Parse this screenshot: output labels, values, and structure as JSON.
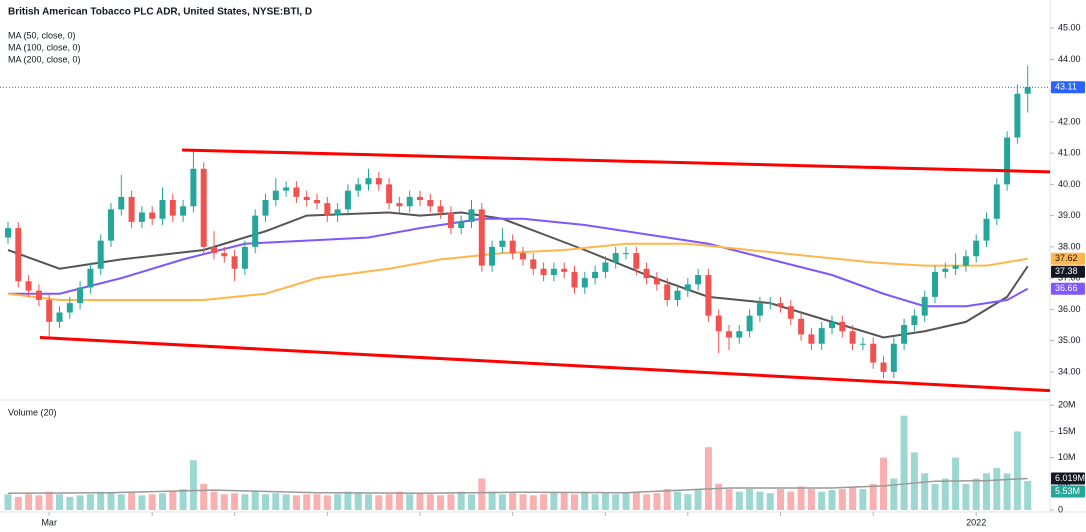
{
  "chart_data": {
    "type": "candlestick",
    "title": "British American Tobacco PLC ADR, United States, NYSE:BTI, D",
    "categories": [
      null,
      null,
      null,
      null,
      "Mar",
      null,
      null,
      null,
      null,
      null,
      null,
      null,
      null,
      null,
      null,
      null,
      null,
      null,
      null,
      null,
      null,
      null,
      null,
      null,
      null,
      null,
      null,
      null,
      null,
      null,
      null,
      null,
      null,
      null,
      null,
      null,
      null,
      null,
      null,
      null,
      null,
      null,
      null,
      null,
      null,
      null,
      null,
      null,
      null,
      null,
      null,
      null,
      null,
      null,
      null,
      null,
      null,
      null,
      null,
      null,
      null,
      null,
      null,
      null,
      null,
      null,
      null,
      null,
      null,
      null,
      null,
      null,
      null,
      null,
      null,
      null,
      null,
      null,
      null,
      null,
      null,
      null,
      null,
      null,
      null,
      null,
      null,
      null,
      null,
      null,
      null,
      null,
      null,
      null,
      "2022",
      null,
      null,
      null,
      null,
      null
    ],
    "month_ticks": [
      4,
      14,
      22,
      31,
      40,
      49,
      58,
      66,
      75,
      84,
      94
    ],
    "open": [
      38.3,
      38.6,
      36.9,
      36.6,
      36.3,
      35.6,
      35.9,
      36.2,
      36.7,
      37.3,
      38.2,
      39.2,
      39.6,
      38.8,
      39.1,
      38.9,
      39.5,
      39.0,
      39.3,
      40.5,
      38.0,
      37.8,
      37.7,
      37.3,
      38.0,
      39.0,
      39.5,
      39.8,
      39.9,
      39.6,
      39.5,
      39.4,
      39.0,
      39.2,
      39.8,
      40.0,
      40.2,
      40.0,
      39.4,
      39.3,
      39.6,
      39.5,
      39.3,
      39.1,
      38.6,
      38.8,
      39.2,
      37.4,
      38.0,
      38.2,
      37.8,
      37.6,
      37.3,
      37.1,
      37.3,
      37.2,
      36.7,
      37.0,
      37.2,
      37.5,
      37.8,
      37.8,
      37.3,
      37.0,
      36.8,
      36.3,
      36.6,
      36.8,
      37.1,
      35.8,
      35.3,
      35.1,
      35.3,
      35.8,
      36.2,
      36.2,
      36.1,
      35.7,
      35.2,
      34.9,
      35.4,
      35.6,
      35.3,
      34.9,
      34.9,
      34.3,
      34.0,
      34.9,
      35.5,
      35.8,
      36.4,
      37.2,
      37.3,
      37.4,
      37.7,
      38.2,
      38.9,
      40.0,
      41.5,
      42.9
    ],
    "high": [
      38.8,
      38.8,
      37.1,
      36.8,
      36.5,
      36.1,
      36.4,
      36.9,
      37.5,
      38.4,
      39.4,
      40.3,
      39.8,
      39.3,
      39.3,
      39.9,
      39.7,
      39.5,
      41.1,
      40.7,
      38.5,
      38.0,
      37.9,
      38.2,
      39.2,
      39.7,
      40.2,
      40.1,
      40.1,
      39.8,
      39.7,
      39.6,
      39.4,
      40.0,
      40.2,
      40.5,
      40.4,
      40.2,
      39.6,
      39.8,
      39.8,
      39.7,
      39.5,
      39.3,
      39.0,
      39.5,
      39.4,
      38.2,
      38.6,
      38.4,
      38.0,
      37.8,
      37.5,
      37.5,
      37.5,
      37.4,
      37.2,
      37.4,
      37.7,
      38.0,
      38.0,
      38.0,
      37.5,
      37.2,
      37.0,
      36.8,
      37.0,
      37.3,
      37.3,
      36.0,
      35.5,
      35.5,
      36.0,
      36.4,
      36.4,
      36.4,
      36.3,
      35.9,
      35.4,
      35.6,
      35.8,
      35.8,
      35.5,
      35.1,
      35.1,
      34.5,
      35.1,
      35.7,
      36.0,
      36.6,
      37.4,
      37.5,
      37.8,
      37.9,
      38.4,
      39.1,
      40.2,
      41.7,
      43.2,
      43.8
    ],
    "low": [
      38.1,
      36.7,
      36.4,
      36.1,
      35.1,
      35.4,
      35.7,
      36.0,
      36.5,
      37.1,
      38.0,
      39.0,
      38.6,
      38.6,
      38.7,
      38.7,
      38.8,
      38.8,
      39.1,
      37.8,
      37.6,
      37.5,
      36.9,
      37.1,
      37.8,
      38.8,
      39.3,
      39.6,
      39.4,
      39.3,
      39.2,
      38.8,
      38.8,
      39.0,
      39.6,
      39.8,
      39.8,
      39.2,
      39.1,
      39.1,
      39.3,
      39.1,
      38.9,
      38.4,
      38.4,
      38.6,
      37.2,
      37.2,
      37.8,
      37.6,
      37.4,
      37.1,
      36.9,
      36.9,
      37.0,
      36.5,
      36.5,
      36.8,
      37.0,
      37.3,
      37.6,
      37.1,
      36.8,
      36.6,
      36.1,
      36.1,
      36.4,
      36.6,
      35.6,
      34.6,
      34.7,
      34.9,
      35.1,
      35.6,
      36.0,
      35.9,
      35.5,
      35.0,
      34.7,
      34.7,
      35.2,
      35.1,
      34.7,
      34.7,
      34.1,
      33.8,
      33.8,
      34.7,
      35.3,
      35.6,
      36.2,
      37.0,
      37.1,
      37.2,
      37.5,
      38.0,
      38.7,
      39.8,
      41.3,
      42.3
    ],
    "close": [
      38.6,
      36.9,
      36.6,
      36.3,
      35.6,
      35.9,
      36.2,
      36.7,
      37.3,
      38.2,
      39.2,
      39.6,
      38.8,
      39.1,
      38.9,
      39.5,
      39.0,
      39.3,
      40.5,
      38.0,
      37.8,
      37.7,
      37.3,
      38.0,
      39.0,
      39.5,
      39.8,
      39.9,
      39.6,
      39.5,
      39.4,
      39.0,
      39.2,
      39.8,
      40.0,
      40.2,
      40.0,
      39.4,
      39.3,
      39.6,
      39.5,
      39.3,
      39.1,
      38.6,
      38.8,
      39.2,
      37.4,
      38.0,
      38.2,
      37.8,
      37.6,
      37.3,
      37.1,
      37.3,
      37.2,
      36.7,
      37.0,
      37.2,
      37.5,
      37.8,
      37.8,
      37.3,
      37.0,
      36.8,
      36.3,
      36.6,
      36.8,
      37.1,
      35.8,
      35.3,
      35.1,
      35.3,
      35.8,
      36.2,
      36.2,
      36.1,
      35.7,
      35.2,
      34.9,
      35.4,
      35.6,
      35.3,
      34.9,
      34.9,
      34.3,
      34.0,
      34.9,
      35.5,
      35.8,
      36.4,
      37.2,
      37.3,
      37.4,
      37.7,
      38.2,
      38.9,
      40.0,
      41.5,
      42.9,
      43.11
    ],
    "up_color": "#26a69a",
    "down_color": "#ef5350",
    "last_price_color": "#2962ff",
    "ylim": [
      33.1,
      45.9
    ],
    "yticks": [
      {
        "value": 34,
        "label": "34.00"
      },
      {
        "value": 35,
        "label": "35.00"
      },
      {
        "value": 36,
        "label": "36.00"
      },
      {
        "value": 37,
        "label": "37.00"
      },
      {
        "value": 38,
        "label": "38.00"
      },
      {
        "value": 39,
        "label": "39.00"
      },
      {
        "value": 40,
        "label": "40.00"
      },
      {
        "value": 41,
        "label": "41.00"
      },
      {
        "value": 42,
        "label": "42.00"
      },
      {
        "value": 43,
        "label": "43.00"
      },
      {
        "value": 44,
        "label": "44.00"
      },
      {
        "value": 45,
        "label": "45.00"
      }
    ],
    "series": [
      {
        "name": "MA (50, close, 0)",
        "color": "#555555",
        "x": [
          0,
          5,
          11,
          19,
          25,
          29,
          37,
          40,
          44,
          48,
          52,
          56,
          62,
          68,
          74,
          80,
          85,
          89,
          93,
          97,
          99
        ],
        "values": [
          37.9,
          37.3,
          37.6,
          37.9,
          38.5,
          39.0,
          39.1,
          39.0,
          39.1,
          38.9,
          38.4,
          37.9,
          37.1,
          36.4,
          36.2,
          35.6,
          35.1,
          35.3,
          35.6,
          36.4,
          37.38
        ]
      },
      {
        "name": "MA (100, close, 0)",
        "color": "#7e57ff",
        "x": [
          0,
          5,
          11,
          17,
          23,
          29,
          35,
          40,
          46,
          50,
          56,
          62,
          68,
          74,
          80,
          85,
          89,
          93,
          97,
          99
        ],
        "values": [
          36.5,
          36.5,
          37.0,
          37.6,
          38.1,
          38.2,
          38.3,
          38.6,
          38.9,
          38.9,
          38.7,
          38.4,
          38.1,
          37.6,
          37.1,
          36.5,
          36.1,
          36.1,
          36.3,
          36.66
        ]
      },
      {
        "name": "MA (200, close, 0)",
        "color": "#ffb74d",
        "x": [
          0,
          5,
          11,
          19,
          25,
          30,
          37,
          42,
          48,
          54,
          60,
          66,
          72,
          78,
          84,
          89,
          95,
          99
        ],
        "values": [
          36.5,
          36.3,
          36.3,
          36.3,
          36.5,
          37.0,
          37.3,
          37.6,
          37.8,
          37.9,
          38.1,
          38.1,
          37.9,
          37.7,
          37.5,
          37.4,
          37.4,
          37.62
        ]
      }
    ],
    "trendlines": [
      {
        "color": "#ff0000",
        "x": [
          16.9,
          101.2
        ],
        "y": [
          41.1,
          40.4
        ]
      },
      {
        "color": "#ff0000",
        "x": [
          3.1,
          101.2
        ],
        "y": [
          35.1,
          33.4
        ]
      }
    ],
    "volume": {
      "name": "Volume (20)",
      "values": [
        3,
        2.5,
        3,
        2.8,
        3.5,
        3,
        2.5,
        2.8,
        3,
        3.5,
        3.2,
        3,
        3.5,
        2.8,
        3,
        3.2,
        3.5,
        4,
        9.5,
        5,
        3.5,
        3,
        3.2,
        3,
        3.5,
        3,
        3.2,
        3,
        2.8,
        3,
        3,
        2.8,
        3,
        3.5,
        3.2,
        3,
        2.8,
        3,
        3.5,
        3,
        3.2,
        3,
        2.8,
        3,
        3.5,
        3,
        6,
        3.5,
        3,
        3.2,
        3,
        2.8,
        3,
        3.5,
        3.2,
        3,
        3.5,
        3,
        3.2,
        3,
        3.2,
        3.5,
        3,
        3.2,
        4,
        3.5,
        3,
        4,
        12,
        5,
        4,
        3.5,
        4,
        3.5,
        3.2,
        4,
        3.5,
        4.5,
        4,
        3.5,
        3.8,
        4,
        4.5,
        4,
        5,
        10,
        6,
        18,
        11,
        7,
        5,
        6,
        10,
        5,
        6,
        7,
        8,
        7,
        15,
        5.53
      ],
      "last_label": "5.53M",
      "ylim": [
        0,
        21
      ],
      "yticks": [
        0,
        {
          "value": 5,
          "label": "5M"
        },
        {
          "value": 10,
          "label": "10M"
        },
        {
          "value": 15,
          "label": "15M"
        },
        {
          "value": 20,
          "label": "20M"
        }
      ],
      "ma": {
        "color": "#999999",
        "x": [
          0,
          10,
          20,
          30,
          40,
          50,
          60,
          70,
          80,
          85,
          90,
          95,
          99
        ],
        "values": [
          3.2,
          3.3,
          3.8,
          3.3,
          3.2,
          3.4,
          3.3,
          4.2,
          4.2,
          4.6,
          5.5,
          5.6,
          6.019
        ],
        "last_label": "6.019M"
      }
    }
  }
}
